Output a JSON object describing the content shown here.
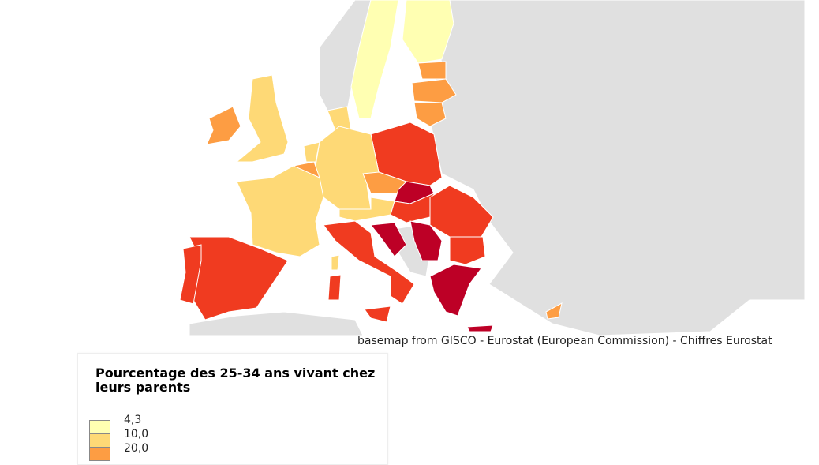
{
  "credit": "basemap from GISCO - Eurostat (European Commission) - Chiffres Eurostat",
  "legend": {
    "title": "Pourcentage des 25-34 ans vivant chez leurs parents",
    "breaks": [
      "4,3",
      "10,0",
      "20,0"
    ],
    "colors": [
      "#ffffb2",
      "#fed976",
      "#fd9d43",
      "#f03b20",
      "#bd0026"
    ]
  },
  "map": {
    "background_color": "#e0e0e0",
    "border_color": "#ffffff"
  }
}
